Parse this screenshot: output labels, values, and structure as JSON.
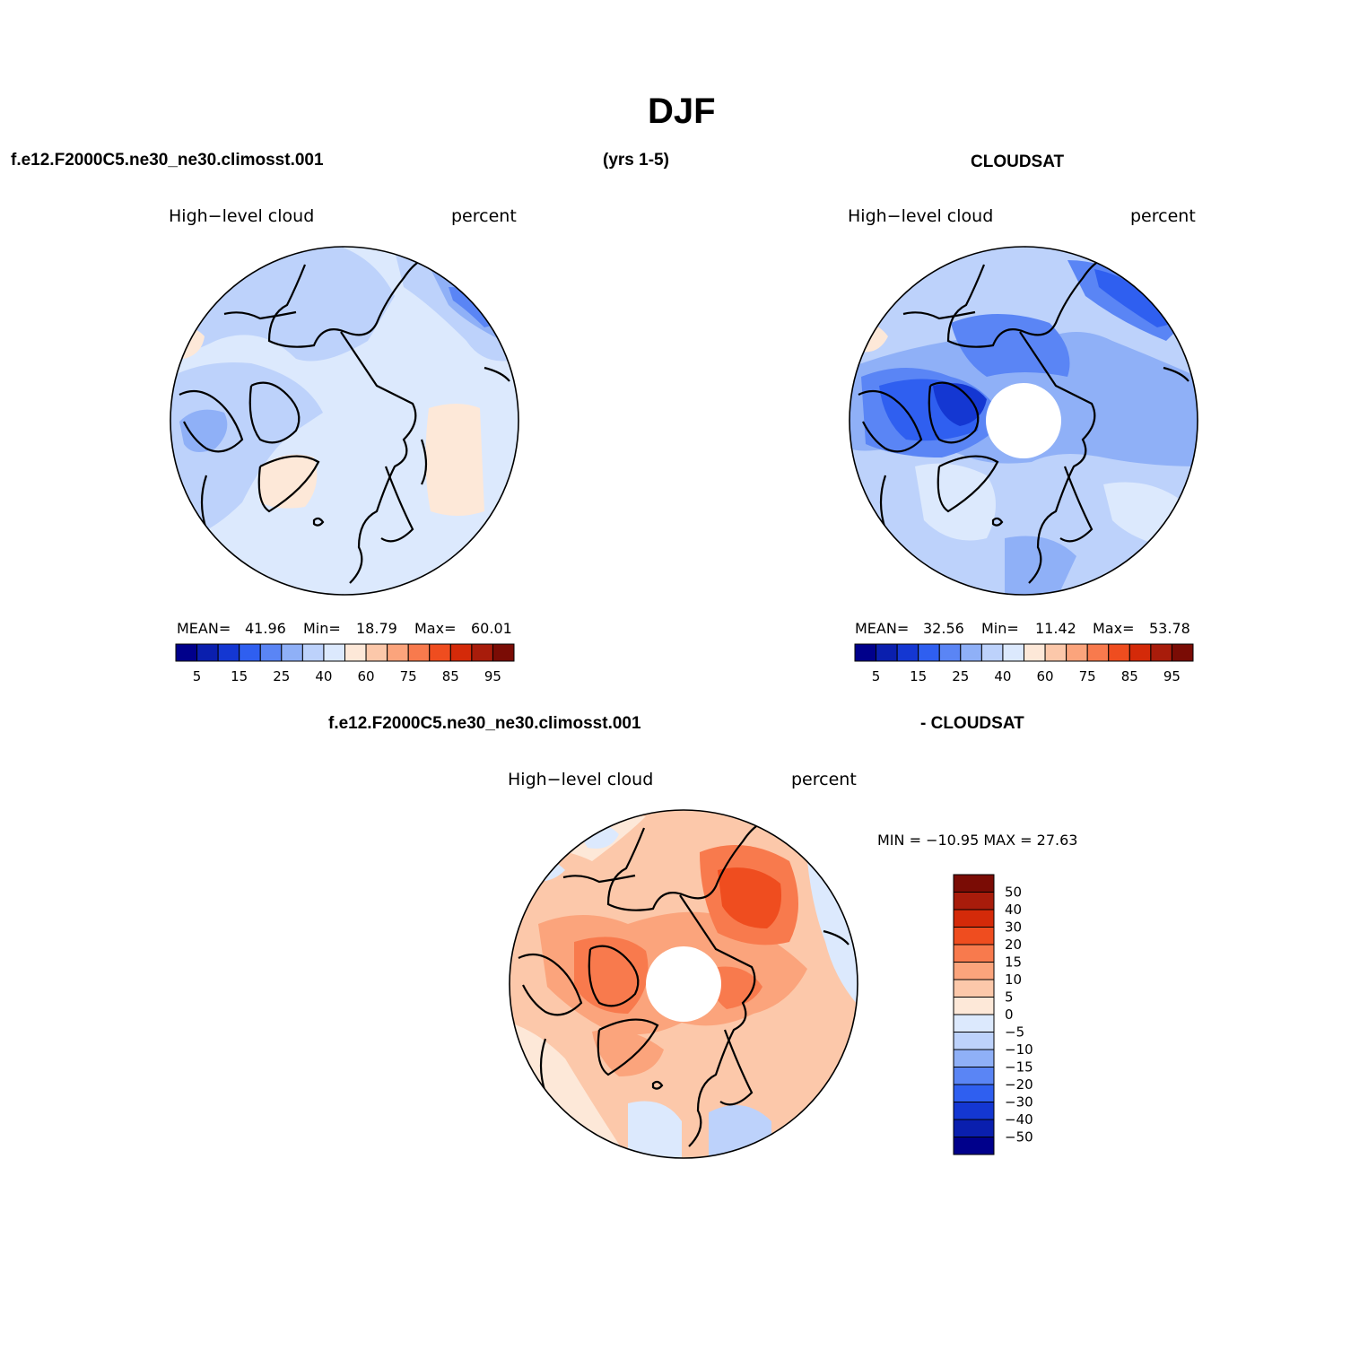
{
  "figure": {
    "title": "DJF",
    "case_name": "f.e12.F2000C5.ne30_ne30.climosst.001",
    "years": "(yrs 1-5)",
    "obs_name": "CLOUDSAT",
    "diff_obs": "- CLOUDSAT"
  },
  "panels": [
    {
      "variable": "High−level cloud",
      "units": "percent",
      "stats": {
        "mean_label": "MEAN=",
        "mean": "41.96",
        "min_label": "Min=",
        "min": "18.79",
        "max_label": "Max=",
        "max": "60.01"
      }
    },
    {
      "variable": "High−level cloud",
      "units": "percent",
      "stats": {
        "mean_label": "MEAN=",
        "mean": "32.56",
        "min_label": "Min=",
        "min": "11.42",
        "max_label": "Max=",
        "max": "53.78"
      }
    },
    {
      "variable": "High−level cloud",
      "units": "percent",
      "stats_text": "MIN = −10.95 MAX =   27.63"
    }
  ],
  "colorbar_abs": {
    "colors": [
      "#00008b",
      "#0a1fae",
      "#1437d2",
      "#2f5ff0",
      "#5a85f5",
      "#8fb0f7",
      "#bdd2fb",
      "#dce9fd",
      "#fde8d8",
      "#fcc8aa",
      "#fba47c",
      "#f87a4d",
      "#ef4d1f",
      "#d42a09",
      "#a81c0b",
      "#7a0c05"
    ],
    "tick_labels": [
      "5",
      "15",
      "25",
      "40",
      "60",
      "75",
      "85",
      "95"
    ]
  },
  "colorbar_diff": {
    "colors_top_to_bottom": [
      "#7a0c05",
      "#a81c0b",
      "#d42a09",
      "#ef4d1f",
      "#f87a4d",
      "#fba47c",
      "#fcc8aa",
      "#fde8d8",
      "#dce9fd",
      "#bdd2fb",
      "#8fb0f7",
      "#5a85f5",
      "#2f5ff0",
      "#1437d2",
      "#0a1fae",
      "#00008b"
    ],
    "tick_labels": [
      "50",
      "40",
      "30",
      "20",
      "15",
      "10",
      "5",
      "0",
      "−5",
      "−10",
      "−15",
      "−20",
      "−30",
      "−40",
      "−50"
    ]
  },
  "maps": [
    {
      "field": "model",
      "base_color": "#dce9fd",
      "pole_hole": false
    },
    {
      "field": "cloudsat",
      "base_color": "#bdd2fb",
      "pole_hole": true
    },
    {
      "field": "difference",
      "base_color": "#fcc8aa",
      "pole_hole": true
    }
  ]
}
